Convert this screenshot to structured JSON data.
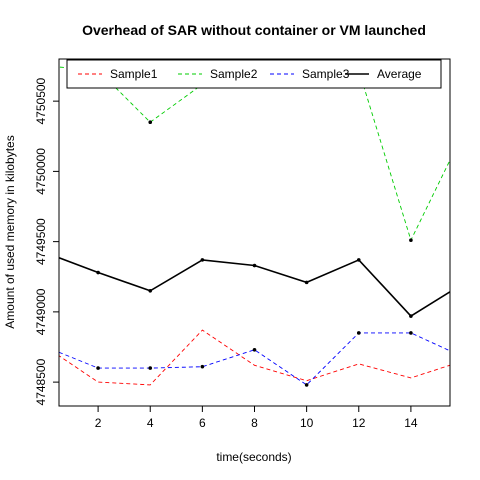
{
  "chart_data": {
    "type": "line",
    "title": "Overhead of SAR without container or VM launched",
    "xlabel": "time(seconds)",
    "ylabel": "Amount of used memory in kilobytes",
    "x": [
      0,
      2,
      4,
      6,
      8,
      10,
      12,
      14,
      16
    ],
    "xlim": [
      0.5,
      15.5
    ],
    "ylim": [
      4748330,
      4750800
    ],
    "x_ticks": [
      2,
      4,
      6,
      8,
      10,
      12,
      14
    ],
    "y_ticks": [
      4748500,
      4749000,
      4749500,
      4750000,
      4750500
    ],
    "grid": false,
    "legend_position": "top",
    "series": [
      {
        "name": "Sample1",
        "color": "#ff0000",
        "dash": "dashed",
        "marker": false,
        "values": [
          4748750,
          4748500,
          4748480,
          4748870,
          4748620,
          4748510,
          4748630,
          4748530,
          4748650
        ]
      },
      {
        "name": "Sample2",
        "color": "#00cc00",
        "dash": "dashed",
        "marker": true,
        "values": [
          4750750,
          4750720,
          4750350,
          4750620,
          4750700,
          4750720,
          4750720,
          4749510,
          4750270
        ]
      },
      {
        "name": "Sample3",
        "color": "#0000ff",
        "dash": "dashed",
        "marker": true,
        "values": [
          4748750,
          4748600,
          4748600,
          4748610,
          4748730,
          4748480,
          4748850,
          4748850,
          4748680
        ]
      },
      {
        "name": "Average",
        "color": "#000000",
        "dash": "solid",
        "marker": true,
        "values": [
          4749420,
          4749280,
          4749150,
          4749370,
          4749330,
          4749210,
          4749370,
          4748970,
          4749200
        ]
      }
    ]
  }
}
